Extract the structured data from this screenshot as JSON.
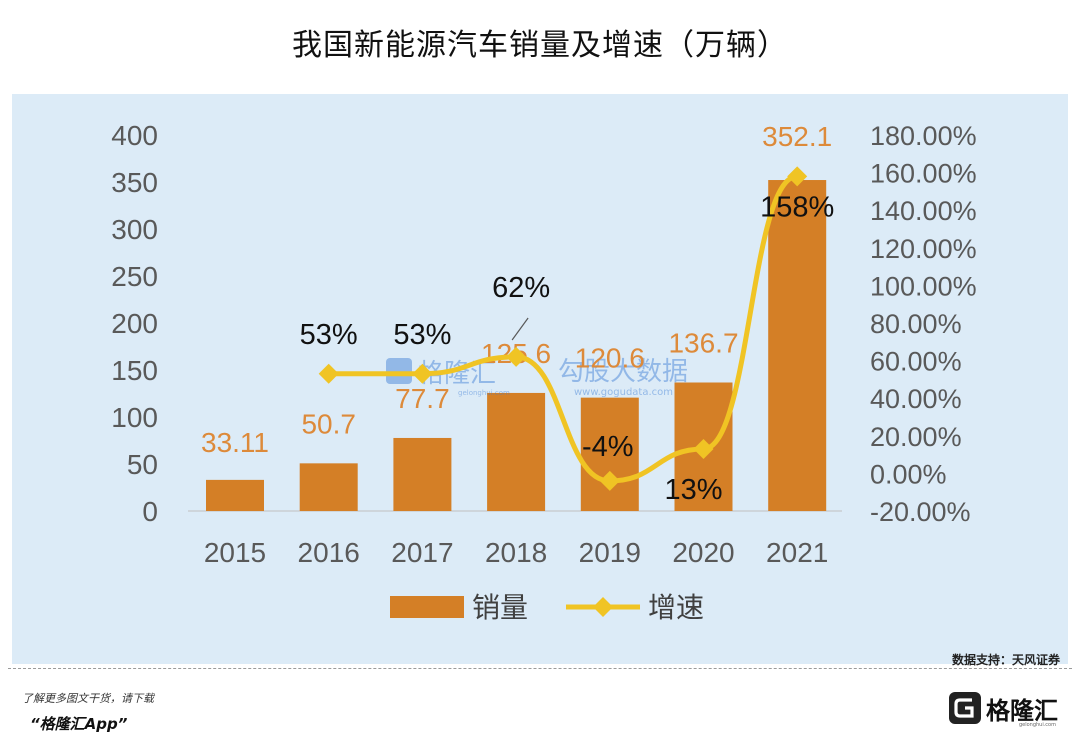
{
  "title": "我国新能源汽车销量及增速（万辆）",
  "source": "数据支持：天风证券",
  "watermark": {
    "brand": "格隆汇",
    "brand_sub": "gelonghui.com",
    "text": "勾股大数据",
    "text_sub": "www.gogudata.com"
  },
  "footer": {
    "promo_line1": "了解更多图文干货，请下载",
    "promo_line2": "“格隆汇App”",
    "brand": "格隆汇",
    "brand_sub": "gelonghui.com"
  },
  "colors": {
    "panel": "#dcebf7",
    "bar": "#d47f26",
    "bar_label": "#dd8a3a",
    "line": "#f0c424",
    "axis_text": "#595959",
    "brand_blue": "#3a7bd5"
  },
  "chart_data": {
    "type": "bar",
    "title": "我国新能源汽车销量及增速（万辆）",
    "categories": [
      "2015",
      "2016",
      "2017",
      "2018",
      "2019",
      "2020",
      "2021"
    ],
    "series": [
      {
        "name": "销量",
        "type": "bar",
        "axis": "left",
        "values": [
          33.11,
          50.7,
          77.7,
          125.6,
          120.6,
          136.7,
          352.1
        ],
        "labels": [
          "33.11",
          "50.7",
          "77.7",
          "125.6",
          "120.6",
          "136.7",
          "352.1"
        ]
      },
      {
        "name": "增速",
        "type": "line",
        "axis": "right",
        "values": [
          null,
          53,
          53,
          62,
          -4,
          13,
          158
        ],
        "labels": [
          "",
          "53%",
          "53%",
          "62%",
          "-4%",
          "13%",
          "158%"
        ]
      }
    ],
    "y_left": {
      "min": 0,
      "max": 400,
      "ticks": [
        "0",
        "50",
        "100",
        "150",
        "200",
        "250",
        "300",
        "350",
        "400"
      ]
    },
    "y_right": {
      "min": -20,
      "max": 180,
      "ticks": [
        "-20.00%",
        "0.00%",
        "20.00%",
        "40.00%",
        "60.00%",
        "80.00%",
        "100.00%",
        "120.00%",
        "140.00%",
        "160.00%",
        "180.00%"
      ]
    },
    "grid": false,
    "legend": "bottom"
  }
}
